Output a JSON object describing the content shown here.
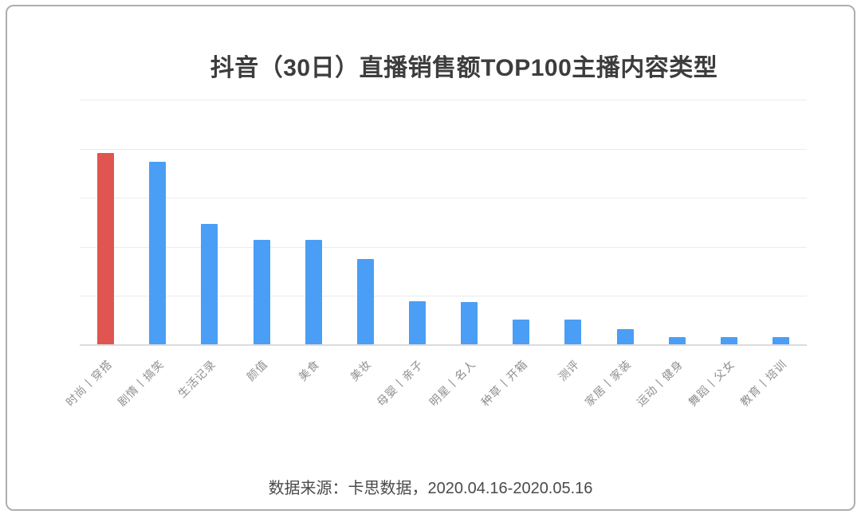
{
  "window": {
    "background": "#ffffff",
    "border_color": "#aeaeae"
  },
  "chart_data": {
    "type": "bar",
    "title": "抖音（30日）直播销售额TOP100主播内容类型",
    "categories": [
      "时尚丨穿搭",
      "剧情丨搞笑",
      "生活记录",
      "颜值",
      "美食",
      "美妆",
      "母婴丨亲子",
      "明星丨名人",
      "种草丨开箱",
      "测评",
      "家居丨家装",
      "运动丨健身",
      "舞蹈丨父女",
      "教育丨培训"
    ],
    "values": [
      19.6,
      18.7,
      12.3,
      10.7,
      10.7,
      8.8,
      4.5,
      4.4,
      2.6,
      2.6,
      1.6,
      0.8,
      0.8,
      0.8
    ],
    "xlabel": "",
    "ylabel": "",
    "ylim": [
      0,
      25
    ],
    "gridline_step": 5,
    "grid": true,
    "legend_position": "none",
    "y_tick_labels_visible": false,
    "highlight_index": 0,
    "colors": {
      "highlight_bar": "#e05550",
      "bar": "#4b9ef5",
      "gridline": "#ececec",
      "baseline": "#dcdcdc",
      "title_text": "#3d3d3d",
      "tick_text": "#8f8f8f",
      "source_text": "#4a4a4a"
    },
    "source_note": "数据来源：卡思数据，2020.04.16-2020.05.16"
  },
  "footer": {
    "source_note": "数据来源：卡思数据，2020.04.16-2020.05.16"
  }
}
